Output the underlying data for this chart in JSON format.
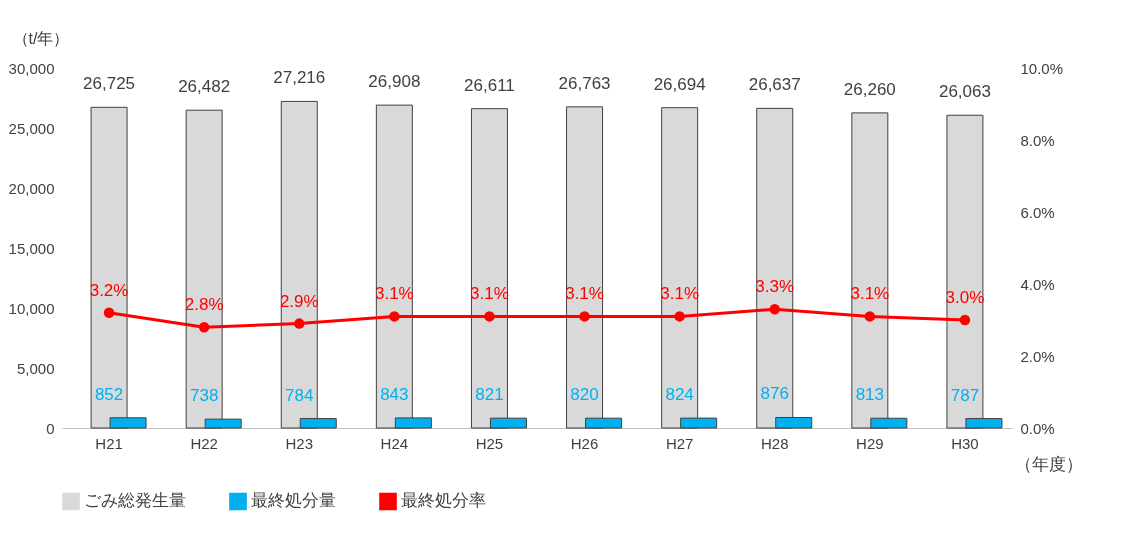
{
  "chart_data": {
    "type": "bar",
    "categories": [
      "H21",
      "H22",
      "H23",
      "H24",
      "H25",
      "H26",
      "H27",
      "H28",
      "H29",
      "H30"
    ],
    "xlabel": "（年度）",
    "ylabel": "（t/年）",
    "ylim": [
      0,
      30000
    ],
    "yticks": [
      {
        "value": 0,
        "label": "0"
      },
      {
        "value": 5000,
        "label": "5,000"
      },
      {
        "value": 10000,
        "label": "10,000"
      },
      {
        "value": 15000,
        "label": "15,000"
      },
      {
        "value": 20000,
        "label": "20,000"
      },
      {
        "value": 25000,
        "label": "25,000"
      },
      {
        "value": 30000,
        "label": "30,000"
      }
    ],
    "y2lim": [
      0,
      10
    ],
    "y2ticks": [
      {
        "value": 0,
        "label": "0.0%"
      },
      {
        "value": 2,
        "label": "2.0%"
      },
      {
        "value": 4,
        "label": "4.0%"
      },
      {
        "value": 6,
        "label": "6.0%"
      },
      {
        "value": 8,
        "label": "8.0%"
      },
      {
        "value": 10,
        "label": "10.0%"
      }
    ],
    "series": [
      {
        "name": "ごみ総発生量",
        "color": "#d9d9d9",
        "values": [
          26725,
          26482,
          27216,
          26908,
          26611,
          26763,
          26694,
          26637,
          26260,
          26063
        ],
        "value_labels": [
          "26,725",
          "26,482",
          "27,216",
          "26,908",
          "26,611",
          "26,763",
          "26,694",
          "26,637",
          "26,260",
          "26,063"
        ]
      },
      {
        "name": "最終処分量",
        "color": "#00b0f0",
        "values": [
          852,
          738,
          784,
          843,
          821,
          820,
          824,
          876,
          813,
          787
        ],
        "value_labels": [
          "852",
          "738",
          "784",
          "843",
          "821",
          "820",
          "824",
          "876",
          "813",
          "787"
        ]
      },
      {
        "name": "最終処分率",
        "type": "line",
        "axis": "y2",
        "color": "#ff0000",
        "marker": "circle",
        "line_style": "solid",
        "values": [
          3.2,
          2.8,
          2.9,
          3.1,
          3.1,
          3.1,
          3.1,
          3.3,
          3.1,
          3.0
        ],
        "value_labels": [
          "3.2%",
          "2.8%",
          "2.9%",
          "3.1%",
          "3.1%",
          "3.1%",
          "3.1%",
          "3.3%",
          "3.1%",
          "3.0%"
        ]
      }
    ],
    "legend": "bottom",
    "grid": false
  }
}
